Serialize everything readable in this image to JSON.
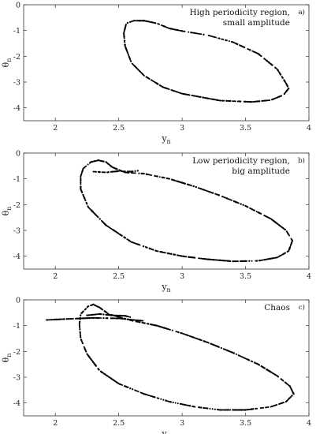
{
  "chart_data": [
    {
      "type": "scatter",
      "panel": "a)",
      "annotation_lines": [
        "High periodicity region,",
        "small amplitude"
      ],
      "xlabel": "y",
      "xlabel_sub": "n",
      "ylabel": "θ",
      "ylabel_sub": "n",
      "xlim": [
        1.75,
        4
      ],
      "ylim": [
        -4.5,
        0
      ],
      "xticks": [
        2,
        2.5,
        3,
        3.5,
        4
      ],
      "yticks": [
        -4,
        -3,
        -2,
        -1,
        0
      ],
      "grid": false,
      "series": [
        {
          "values": [
            {
              "x": 2.56,
              "y": -0.72
            },
            {
              "x": 2.62,
              "y": -0.62
            },
            {
              "x": 2.7,
              "y": -0.62
            },
            {
              "x": 2.8,
              "y": -0.72
            },
            {
              "x": 2.9,
              "y": -0.92
            },
            {
              "x": 3.0,
              "y": -1.02
            },
            {
              "x": 3.2,
              "y": -1.18
            },
            {
              "x": 3.4,
              "y": -1.45
            },
            {
              "x": 3.6,
              "y": -1.9
            },
            {
              "x": 3.75,
              "y": -2.5
            },
            {
              "x": 3.82,
              "y": -3.05
            },
            {
              "x": 3.84,
              "y": -3.25
            },
            {
              "x": 3.8,
              "y": -3.5
            },
            {
              "x": 3.7,
              "y": -3.7
            },
            {
              "x": 3.55,
              "y": -3.77
            },
            {
              "x": 3.3,
              "y": -3.72
            },
            {
              "x": 3.0,
              "y": -3.45
            },
            {
              "x": 2.85,
              "y": -3.2
            },
            {
              "x": 2.7,
              "y": -2.75
            },
            {
              "x": 2.6,
              "y": -2.25
            },
            {
              "x": 2.55,
              "y": -1.6
            },
            {
              "x": 2.54,
              "y": -1.1
            },
            {
              "x": 2.56,
              "y": -0.72
            }
          ]
        }
      ]
    },
    {
      "type": "scatter",
      "panel": "b)",
      "annotation_lines": [
        "Low periodicity region,",
        "big amplitude"
      ],
      "xlabel": "y",
      "xlabel_sub": "n",
      "ylabel": "θ",
      "ylabel_sub": "n",
      "xlim": [
        1.75,
        4
      ],
      "ylim": [
        -4.5,
        0
      ],
      "xticks": [
        2,
        2.5,
        3,
        3.5,
        4
      ],
      "yticks": [
        -4,
        -3,
        -2,
        -1,
        0
      ],
      "grid": false,
      "series": [
        {
          "values": [
            {
              "x": 2.22,
              "y": -0.6
            },
            {
              "x": 2.28,
              "y": -0.35
            },
            {
              "x": 2.34,
              "y": -0.28
            },
            {
              "x": 2.4,
              "y": -0.35
            },
            {
              "x": 2.45,
              "y": -0.55
            },
            {
              "x": 2.55,
              "y": -0.75
            },
            {
              "x": 2.7,
              "y": -0.8
            },
            {
              "x": 2.9,
              "y": -1.0
            },
            {
              "x": 3.1,
              "y": -1.3
            },
            {
              "x": 3.3,
              "y": -1.65
            },
            {
              "x": 3.5,
              "y": -2.05
            },
            {
              "x": 3.7,
              "y": -2.55
            },
            {
              "x": 3.82,
              "y": -3.0
            },
            {
              "x": 3.87,
              "y": -3.4
            },
            {
              "x": 3.84,
              "y": -3.8
            },
            {
              "x": 3.75,
              "y": -4.05
            },
            {
              "x": 3.6,
              "y": -4.18
            },
            {
              "x": 3.4,
              "y": -4.2
            },
            {
              "x": 3.2,
              "y": -4.12
            },
            {
              "x": 3.0,
              "y": -4.0
            },
            {
              "x": 2.8,
              "y": -3.8
            },
            {
              "x": 2.6,
              "y": -3.45
            },
            {
              "x": 2.4,
              "y": -2.8
            },
            {
              "x": 2.26,
              "y": -2.1
            },
            {
              "x": 2.2,
              "y": -1.4
            },
            {
              "x": 2.2,
              "y": -0.9
            },
            {
              "x": 2.22,
              "y": -0.6
            }
          ]
        },
        {
          "values": [
            {
              "x": 2.3,
              "y": -0.72
            },
            {
              "x": 2.4,
              "y": -0.75
            },
            {
              "x": 2.5,
              "y": -0.7
            },
            {
              "x": 2.6,
              "y": -0.72
            },
            {
              "x": 2.66,
              "y": -0.68
            }
          ]
        }
      ]
    },
    {
      "type": "scatter",
      "panel": "c)",
      "annotation_lines": [
        "Chaos"
      ],
      "xlabel": "y",
      "xlabel_sub": "n",
      "ylabel": "θ",
      "ylabel_sub": "n",
      "xlim": [
        1.75,
        4
      ],
      "ylim": [
        -4.5,
        0
      ],
      "xticks": [
        2,
        2.5,
        3,
        3.5,
        4
      ],
      "yticks": [
        -4,
        -3,
        -2,
        -1,
        0
      ],
      "grid": false,
      "series": [
        {
          "values": [
            {
              "x": 2.2,
              "y": -0.55
            },
            {
              "x": 2.26,
              "y": -0.25
            },
            {
              "x": 2.3,
              "y": -0.18
            },
            {
              "x": 2.35,
              "y": -0.3
            },
            {
              "x": 2.42,
              "y": -0.55
            },
            {
              "x": 2.6,
              "y": -0.8
            },
            {
              "x": 2.8,
              "y": -1.0
            },
            {
              "x": 3.0,
              "y": -1.3
            },
            {
              "x": 3.2,
              "y": -1.65
            },
            {
              "x": 3.4,
              "y": -2.05
            },
            {
              "x": 3.6,
              "y": -2.5
            },
            {
              "x": 3.75,
              "y": -2.95
            },
            {
              "x": 3.85,
              "y": -3.35
            },
            {
              "x": 3.88,
              "y": -3.65
            },
            {
              "x": 3.82,
              "y": -3.95
            },
            {
              "x": 3.7,
              "y": -4.15
            },
            {
              "x": 3.5,
              "y": -4.27
            },
            {
              "x": 3.3,
              "y": -4.27
            },
            {
              "x": 3.1,
              "y": -4.15
            },
            {
              "x": 2.9,
              "y": -3.95
            },
            {
              "x": 2.7,
              "y": -3.65
            },
            {
              "x": 2.5,
              "y": -3.25
            },
            {
              "x": 2.35,
              "y": -2.75
            },
            {
              "x": 2.25,
              "y": -2.1
            },
            {
              "x": 2.2,
              "y": -1.5
            },
            {
              "x": 2.19,
              "y": -0.95
            },
            {
              "x": 2.2,
              "y": -0.55
            }
          ]
        },
        {
          "values": [
            {
              "x": 1.93,
              "y": -0.78
            },
            {
              "x": 2.1,
              "y": -0.74
            },
            {
              "x": 2.3,
              "y": -0.7
            },
            {
              "x": 2.5,
              "y": -0.72
            },
            {
              "x": 2.7,
              "y": -0.82
            }
          ]
        },
        {
          "values": [
            {
              "x": 2.25,
              "y": -0.6
            },
            {
              "x": 2.35,
              "y": -0.55
            },
            {
              "x": 2.45,
              "y": -0.6
            },
            {
              "x": 2.55,
              "y": -0.62
            },
            {
              "x": 2.6,
              "y": -0.68
            }
          ]
        }
      ]
    }
  ]
}
